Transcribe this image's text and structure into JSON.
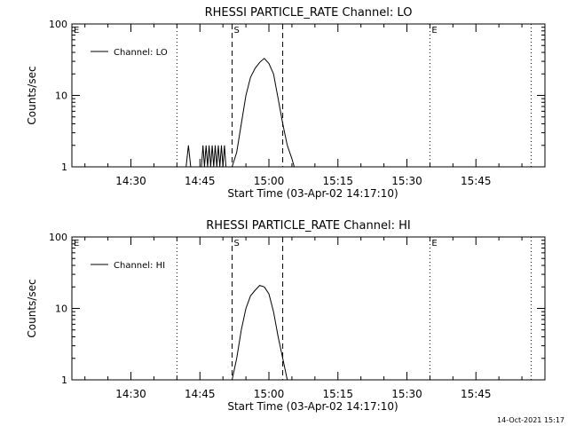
{
  "stamp": "14-Oct-2021 15:17",
  "chart_data": [
    {
      "type": "line",
      "title": "RHESSI PARTICLE_RATE Channel: LO",
      "xlabel": "Start Time (03-Apr-02 14:17:10)",
      "ylabel": "Counts/sec",
      "xticks": [
        "14:30",
        "14:45",
        "15:00",
        "15:15",
        "15:30",
        "15:45"
      ],
      "xlim": [
        "14:17:10",
        "16:00:00"
      ],
      "yscale": "log",
      "ylim": [
        1,
        100
      ],
      "yticks": [
        "1",
        "10",
        "100"
      ],
      "legend": {
        "position": "top-left",
        "entries": [
          "Channel: LO"
        ]
      },
      "markers": [
        {
          "label": "E",
          "time": "14:17:10",
          "style": "dotted"
        },
        {
          "label": "",
          "time": "14:40:00",
          "style": "dotted"
        },
        {
          "label": "S",
          "time": "14:52:00",
          "style": "dashed"
        },
        {
          "label": "",
          "time": "15:03:00",
          "style": "dashed"
        },
        {
          "label": "E",
          "time": "15:35:00",
          "style": "dotted"
        },
        {
          "label": "",
          "time": "15:57:00",
          "style": "dotted"
        }
      ],
      "series": [
        {
          "name": "Channel: LO",
          "points": [
            [
              "14:39:00",
              1
            ],
            [
              "14:40:00",
              1
            ],
            [
              "14:42:00",
              1
            ],
            [
              "14:42:30",
              2
            ],
            [
              "14:43:00",
              1
            ],
            [
              "14:45:20",
              1
            ],
            [
              "14:45:40",
              2
            ],
            [
              "14:46:00",
              1
            ],
            [
              "14:46:20",
              2
            ],
            [
              "14:46:40",
              1
            ],
            [
              "14:47:00",
              2
            ],
            [
              "14:47:20",
              1
            ],
            [
              "14:47:40",
              2
            ],
            [
              "14:48:00",
              1
            ],
            [
              "14:48:20",
              2
            ],
            [
              "14:48:40",
              1
            ],
            [
              "14:49:00",
              2
            ],
            [
              "14:49:20",
              1
            ],
            [
              "14:49:40",
              2
            ],
            [
              "14:50:00",
              1
            ],
            [
              "14:50:20",
              2
            ],
            [
              "14:50:40",
              1
            ],
            [
              "14:52:00",
              1
            ],
            [
              "14:53:00",
              1.6
            ],
            [
              "14:54:00",
              4
            ],
            [
              "14:55:00",
              10
            ],
            [
              "14:56:00",
              18
            ],
            [
              "14:57:00",
              24
            ],
            [
              "14:58:00",
              29
            ],
            [
              "14:59:00",
              33
            ],
            [
              "15:00:00",
              28
            ],
            [
              "15:01:00",
              20
            ],
            [
              "15:02:00",
              9
            ],
            [
              "15:03:00",
              4
            ],
            [
              "15:04:00",
              2
            ],
            [
              "15:05:00",
              1.3
            ],
            [
              "15:05:30",
              1
            ]
          ]
        }
      ]
    },
    {
      "type": "line",
      "title": "RHESSI PARTICLE_RATE Channel: HI",
      "xlabel": "Start Time (03-Apr-02 14:17:10)",
      "ylabel": "Counts/sec",
      "xticks": [
        "14:30",
        "14:45",
        "15:00",
        "15:15",
        "15:30",
        "15:45"
      ],
      "xlim": [
        "14:17:10",
        "16:00:00"
      ],
      "yscale": "log",
      "ylim": [
        1,
        100
      ],
      "yticks": [
        "1",
        "10",
        "100"
      ],
      "legend": {
        "position": "top-left",
        "entries": [
          "Channel: HI"
        ]
      },
      "markers": [
        {
          "label": "E",
          "time": "14:17:10",
          "style": "dotted"
        },
        {
          "label": "",
          "time": "14:40:00",
          "style": "dotted"
        },
        {
          "label": "S",
          "time": "14:52:00",
          "style": "dashed"
        },
        {
          "label": "",
          "time": "15:03:00",
          "style": "dashed"
        },
        {
          "label": "E",
          "time": "15:35:00",
          "style": "dotted"
        },
        {
          "label": "",
          "time": "15:57:00",
          "style": "dotted"
        }
      ],
      "series": [
        {
          "name": "Channel: HI",
          "points": [
            [
              "14:52:00",
              1
            ],
            [
              "14:53:00",
              2
            ],
            [
              "14:54:00",
              5
            ],
            [
              "14:55:00",
              10
            ],
            [
              "14:56:00",
              15
            ],
            [
              "14:57:00",
              18
            ],
            [
              "14:58:00",
              21
            ],
            [
              "14:59:00",
              20
            ],
            [
              "15:00:00",
              16
            ],
            [
              "15:01:00",
              9
            ],
            [
              "15:02:00",
              4
            ],
            [
              "15:03:00",
              2
            ],
            [
              "15:04:00",
              1
            ]
          ]
        }
      ]
    }
  ]
}
